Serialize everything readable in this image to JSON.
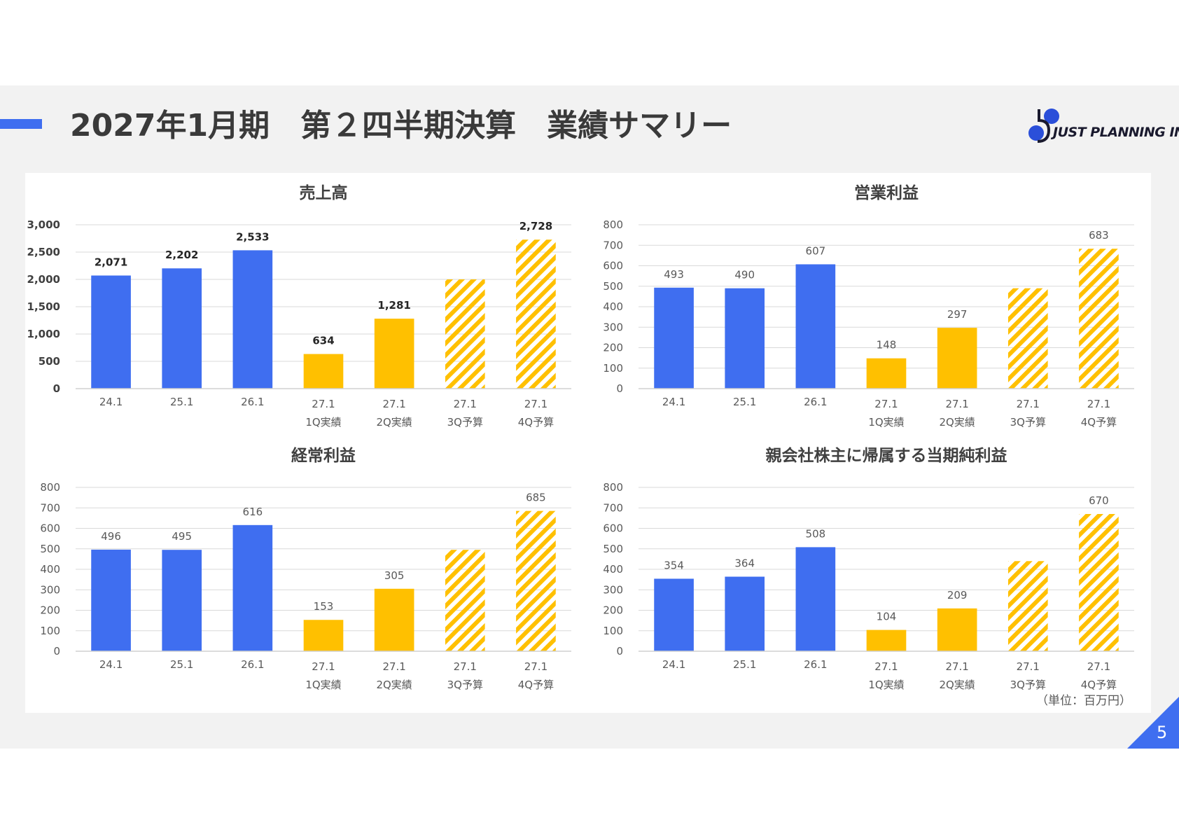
{
  "page": {
    "title": "2027年1月期　第２四半期決算　業績サマリー",
    "logo_text": "JUST PLANNING INC.",
    "unit_note": "（単位：百万円）",
    "page_number": "5"
  },
  "colors": {
    "actual_past": "#3f6ef0",
    "actual_current": "#ffc000",
    "budget_hatch": "#ffc000",
    "grid": "#d9d9d9",
    "axis_text": "#595959",
    "accent": "#3f6ef0"
  },
  "chart_data": [
    {
      "type": "bar",
      "title": "売上高",
      "categories": [
        [
          "24.1"
        ],
        [
          "25.1"
        ],
        [
          "26.1"
        ],
        [
          "27.1",
          "1Q実績"
        ],
        [
          "27.1",
          "2Q実績"
        ],
        [
          "27.1",
          "3Q予算"
        ],
        [
          "27.1",
          "4Q予算"
        ]
      ],
      "values": [
        2071,
        2202,
        2533,
        634,
        1281,
        2000,
        2728
      ],
      "data_labels": [
        "2,071",
        "2,202",
        "2,533",
        "634",
        "1,281",
        "",
        "2,728"
      ],
      "bar_styles": [
        "past",
        "past",
        "past",
        "current",
        "current",
        "budget",
        "budget"
      ],
      "ylim": [
        0,
        3000
      ],
      "yticks": [
        0,
        500,
        1000,
        1500,
        2000,
        2500,
        3000
      ],
      "ytick_labels": [
        "0",
        "500",
        "1,000",
        "1,500",
        "2,000",
        "2,500",
        "3,000"
      ],
      "bold_labels": true,
      "grid": true
    },
    {
      "type": "bar",
      "title": "営業利益",
      "categories": [
        [
          "24.1"
        ],
        [
          "25.1"
        ],
        [
          "26.1"
        ],
        [
          "27.1",
          "1Q実績"
        ],
        [
          "27.1",
          "2Q実績"
        ],
        [
          "27.1",
          "3Q予算"
        ],
        [
          "27.1",
          "4Q予算"
        ]
      ],
      "values": [
        493,
        490,
        607,
        148,
        297,
        490,
        683
      ],
      "data_labels": [
        "493",
        "490",
        "607",
        "148",
        "297",
        "",
        "683"
      ],
      "bar_styles": [
        "past",
        "past",
        "past",
        "current",
        "current",
        "budget",
        "budget"
      ],
      "ylim": [
        0,
        800
      ],
      "yticks": [
        0,
        100,
        200,
        300,
        400,
        500,
        600,
        700,
        800
      ],
      "ytick_labels": [
        "0",
        "100",
        "200",
        "300",
        "400",
        "500",
        "600",
        "700",
        "800"
      ],
      "bold_labels": false,
      "grid": true
    },
    {
      "type": "bar",
      "title": "経常利益",
      "categories": [
        [
          "24.1"
        ],
        [
          "25.1"
        ],
        [
          "26.1"
        ],
        [
          "27.1",
          "1Q実績"
        ],
        [
          "27.1",
          "2Q実績"
        ],
        [
          "27.1",
          "3Q予算"
        ],
        [
          "27.1",
          "4Q予算"
        ]
      ],
      "values": [
        496,
        495,
        616,
        153,
        305,
        495,
        685
      ],
      "data_labels": [
        "496",
        "495",
        "616",
        "153",
        "305",
        "",
        "685"
      ],
      "bar_styles": [
        "past",
        "past",
        "past",
        "current",
        "current",
        "budget",
        "budget"
      ],
      "ylim": [
        0,
        800
      ],
      "yticks": [
        0,
        100,
        200,
        300,
        400,
        500,
        600,
        700,
        800
      ],
      "ytick_labels": [
        "0",
        "100",
        "200",
        "300",
        "400",
        "500",
        "600",
        "700",
        "800"
      ],
      "bold_labels": false,
      "grid": true
    },
    {
      "type": "bar",
      "title": "親会社株主に帰属する当期純利益",
      "categories": [
        [
          "24.1"
        ],
        [
          "25.1"
        ],
        [
          "26.1"
        ],
        [
          "27.1",
          "1Q実績"
        ],
        [
          "27.1",
          "2Q実績"
        ],
        [
          "27.1",
          "3Q予算"
        ],
        [
          "27.1",
          "4Q予算"
        ]
      ],
      "values": [
        354,
        364,
        508,
        104,
        209,
        440,
        670
      ],
      "data_labels": [
        "354",
        "364",
        "508",
        "104",
        "209",
        "",
        "670"
      ],
      "bar_styles": [
        "past",
        "past",
        "past",
        "current",
        "current",
        "budget",
        "budget"
      ],
      "ylim": [
        0,
        800
      ],
      "yticks": [
        0,
        100,
        200,
        300,
        400,
        500,
        600,
        700,
        800
      ],
      "ytick_labels": [
        "0",
        "100",
        "200",
        "300",
        "400",
        "500",
        "600",
        "700",
        "800"
      ],
      "bold_labels": false,
      "grid": true
    }
  ]
}
